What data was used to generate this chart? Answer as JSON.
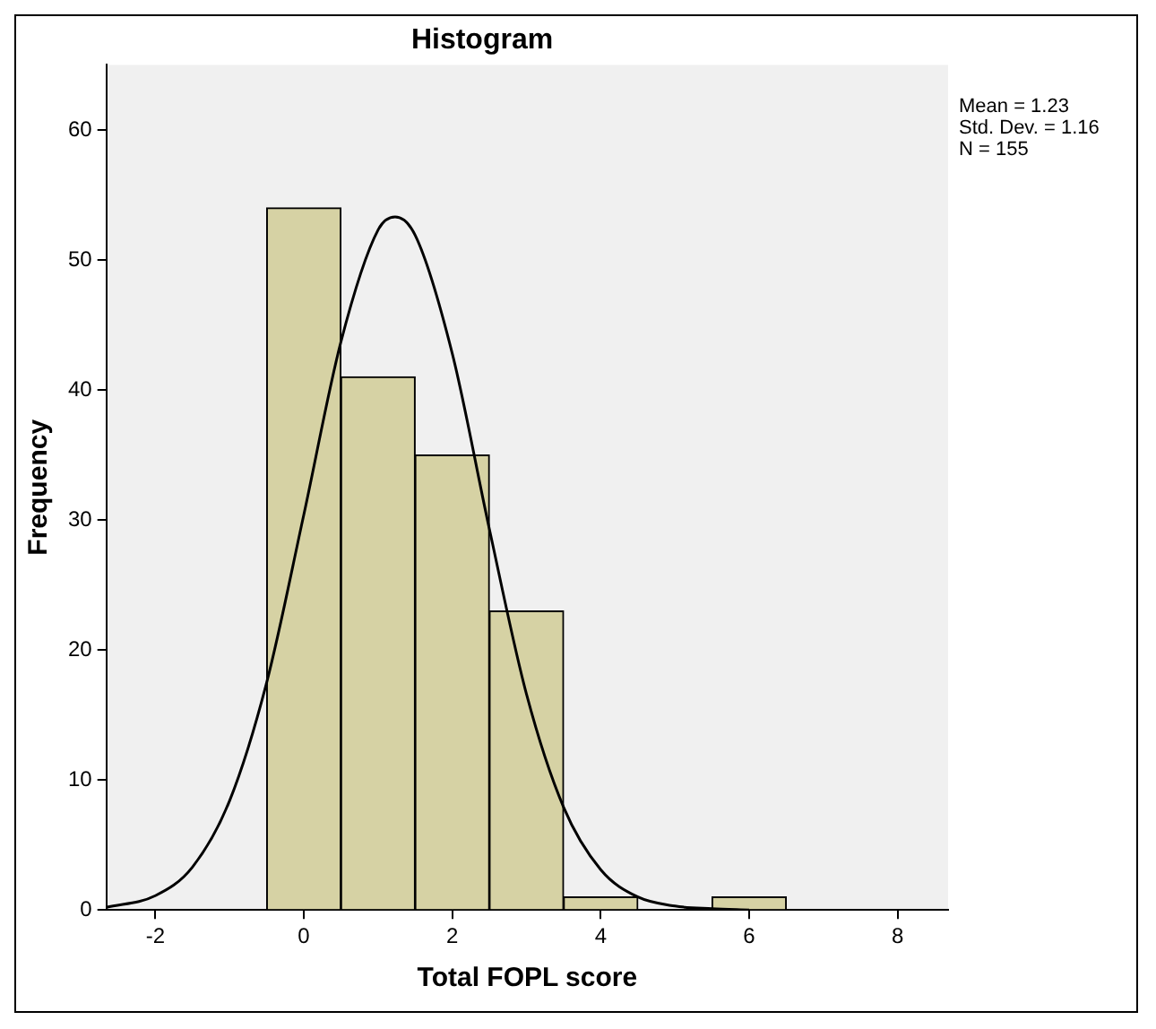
{
  "chart_data": {
    "type": "histogram",
    "title": "Histogram",
    "xlabel": "Total FOPL score",
    "ylabel": "Frequency",
    "series": [
      {
        "color": "#d6d2a4",
        "bins": [
          -0.5,
          0.5,
          1.5,
          2.5,
          3.5,
          4.5,
          5.5,
          6.5
        ],
        "values": [
          54,
          41,
          35,
          23,
          1,
          0,
          1
        ]
      },
      {
        "type": "line",
        "color": "#000000",
        "x": [
          -2.66,
          -2,
          -1.5,
          -1,
          -0.5,
          0,
          0.5,
          1,
          1.23,
          1.5,
          2,
          2.5,
          3,
          3.5,
          4,
          4.5,
          5,
          5.5,
          6
        ],
        "values": [
          0.2,
          1.1,
          3.3,
          8.4,
          17.5,
          30.4,
          43.7,
          52.3,
          53.3,
          51.9,
          42.8,
          29.3,
          16.6,
          7.9,
          3.1,
          1,
          0.3,
          0.1,
          0
        ]
      }
    ],
    "xlim": [
      -2.66,
      8.68
    ],
    "xticks": [
      -2,
      0,
      2,
      4,
      6,
      8
    ],
    "ylim": [
      0,
      65
    ],
    "yticks": [
      0,
      10,
      20,
      30,
      40,
      50,
      60
    ],
    "grid": false,
    "legend": false,
    "marker": "none",
    "annotations": [
      "Mean = 1.23",
      "Std. Dev. = 1.16",
      "N = 155"
    ]
  }
}
